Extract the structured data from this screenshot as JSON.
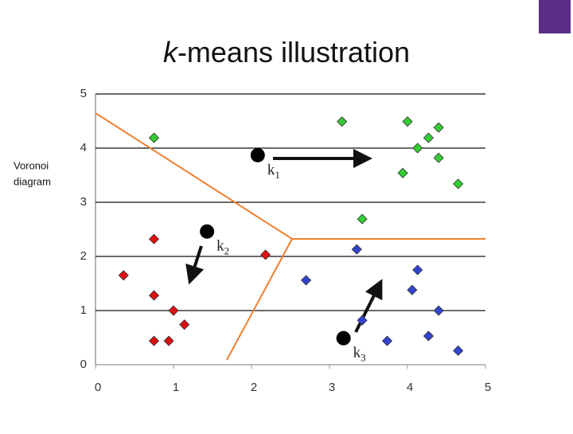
{
  "chart_data": {
    "type": "scatter",
    "title": {
      "italic": "k",
      "rest": "-means illustration"
    },
    "side_label": [
      "Voronoi",
      "diagram"
    ],
    "xlim": [
      0,
      5
    ],
    "ylim": [
      0,
      5
    ],
    "xticks": [
      0,
      1,
      2,
      3,
      4,
      5
    ],
    "yticks": [
      0,
      1,
      2,
      3,
      4,
      5
    ],
    "grid": true,
    "series": [
      {
        "color": "#33cc33",
        "x": [
          0.75,
          3.16,
          4.0,
          4.4,
          4.27,
          4.13,
          4.4,
          3.94,
          4.65,
          3.42
        ],
        "y": [
          4.19,
          4.49,
          4.49,
          4.38,
          4.19,
          4.0,
          3.82,
          3.54,
          3.34,
          2.69
        ]
      },
      {
        "color": "#dd1111",
        "x": [
          0.75,
          2.18,
          0.36,
          0.75,
          1.0,
          1.14,
          0.75,
          0.94
        ],
        "y": [
          2.32,
          2.03,
          1.65,
          1.28,
          1.0,
          0.74,
          0.44,
          0.44
        ]
      },
      {
        "color": "#3344cc",
        "x": [
          3.35,
          2.7,
          4.13,
          4.06,
          4.4,
          3.42,
          3.74,
          4.27,
          4.65
        ],
        "y": [
          2.13,
          1.56,
          1.75,
          1.38,
          1.0,
          0.82,
          0.44,
          0.53,
          0.26
        ]
      }
    ],
    "centroids": {
      "color": "#000000",
      "x": [
        2.08,
        1.43,
        3.18
      ],
      "y": [
        3.87,
        2.46,
        0.49
      ],
      "labels": [
        {
          "letter": "k",
          "sub": "1"
        },
        {
          "letter": "k",
          "sub": "2"
        },
        {
          "letter": "k",
          "sub": "3"
        }
      ]
    }
  }
}
